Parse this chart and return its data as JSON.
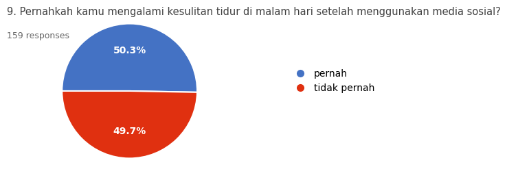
{
  "title": "9. Pernahkah kamu mengalami kesulitan tidur di malam hari setelah menggunakan media sosial?",
  "subtitle": "159 responses",
  "labels": [
    "pernah",
    "tidak pernah"
  ],
  "values": [
    50.3,
    49.7
  ],
  "colors": [
    "#4472C4",
    "#E03010"
  ],
  "title_fontsize": 10.5,
  "subtitle_fontsize": 9,
  "legend_fontsize": 10,
  "pct_fontsize": 10,
  "background_color": "#ffffff",
  "text_color": "#404040",
  "startangle": 180
}
